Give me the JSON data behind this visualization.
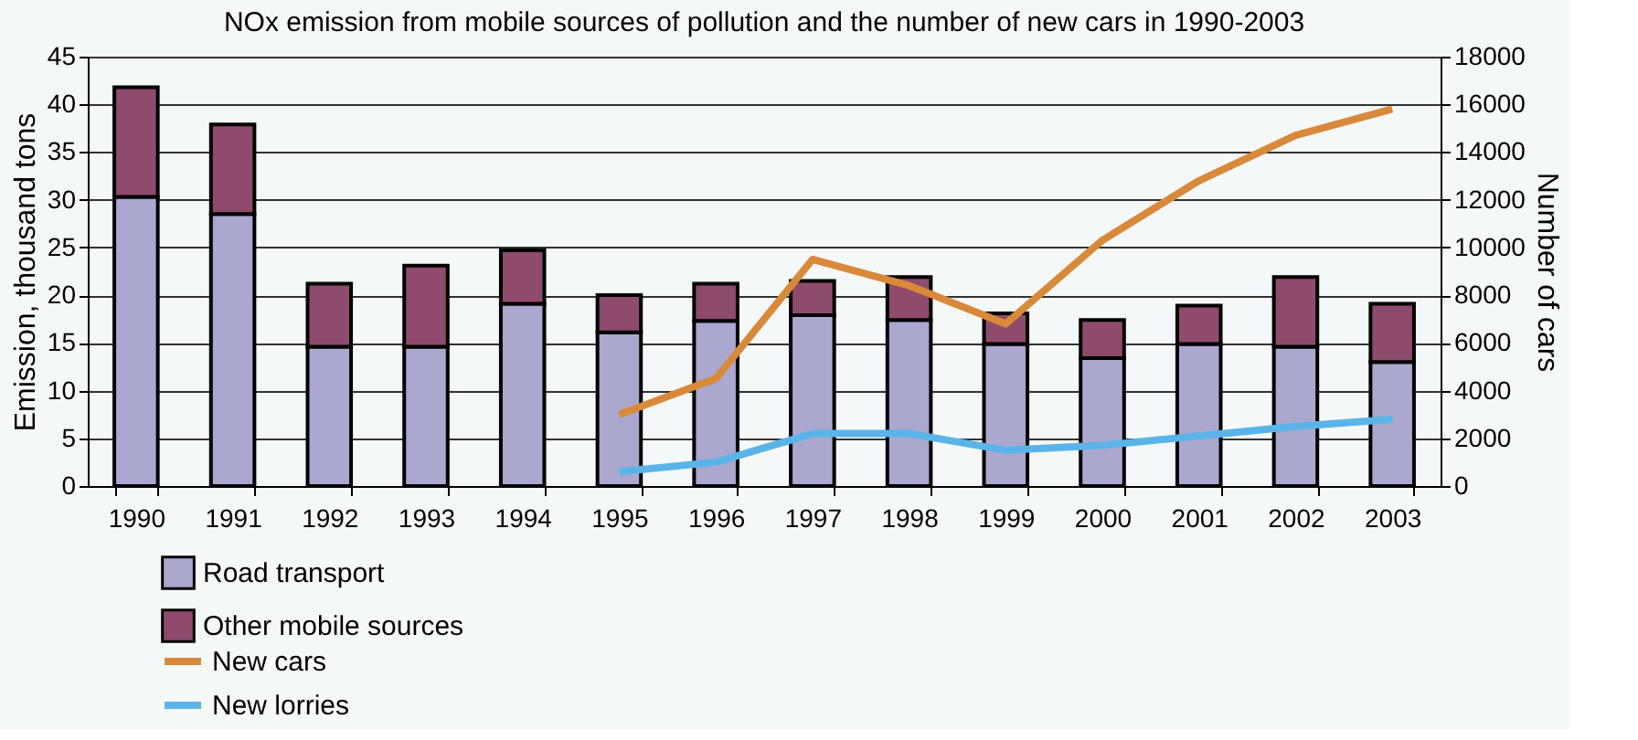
{
  "chart_data": {
    "type": "bar",
    "title": "NOx emission from mobile sources of pollution and the number of new cars in 1990-2003",
    "ylabel": "Emission, thousand tons",
    "y2label": "Number of cars",
    "categories": [
      "1990",
      "1991",
      "1992",
      "1993",
      "1994",
      "1995",
      "1996",
      "1997",
      "1998",
      "1999",
      "2000",
      "2001",
      "2002",
      "2003"
    ],
    "stacked": true,
    "series": [
      {
        "name": "Road transport",
        "color": "#aaa8cf",
        "values": [
          30.3,
          28.5,
          14.6,
          14.6,
          19.1,
          16.1,
          17.3,
          17.9,
          17.4,
          14.9,
          13.4,
          14.9,
          14.6,
          13.0
        ]
      },
      {
        "name": "Other mobile sources",
        "color": "#8e4b6c",
        "values": [
          11.5,
          9.4,
          6.6,
          8.5,
          5.6,
          3.9,
          3.9,
          3.6,
          4.5,
          3.2,
          4.0,
          4.0,
          7.3,
          6.1
        ]
      },
      {
        "name": "New cars",
        "type": "line",
        "axis": "y2",
        "color": "#d9893a",
        "values": [
          null,
          null,
          null,
          null,
          null,
          3000,
          4500,
          9500,
          8400,
          6800,
          10300,
          12800,
          14700,
          15800
        ]
      },
      {
        "name": "New lorries",
        "type": "line",
        "axis": "y2",
        "color": "#5bb4e8",
        "values": [
          null,
          null,
          null,
          null,
          null,
          600,
          1000,
          2200,
          2200,
          1500,
          1700,
          2100,
          2500,
          2800
        ]
      }
    ],
    "ylim": [
      0,
      45
    ],
    "yticks": [
      0,
      5,
      10,
      15,
      20,
      25,
      30,
      35,
      40,
      45
    ],
    "y2lim": [
      0,
      18000
    ],
    "y2ticks": [
      0,
      2000,
      4000,
      6000,
      8000,
      10000,
      12000,
      14000,
      16000,
      18000
    ],
    "grid": "y",
    "legend": "bottom left"
  }
}
